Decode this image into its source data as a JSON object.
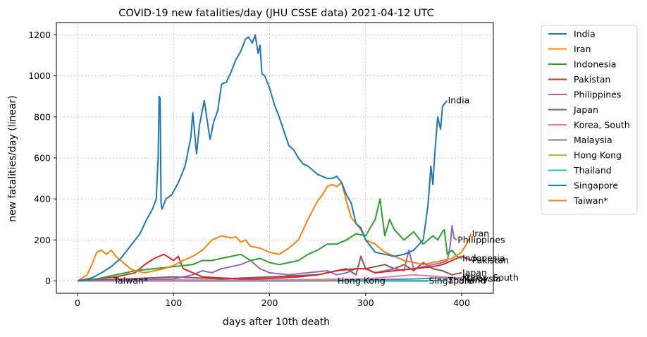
{
  "chart_data": {
    "type": "line",
    "title": "COVID-19 new fatalities/day (JHU CSSE data) 2021-04-12 UTC",
    "xlabel": "days after 10th death",
    "ylabel": "new fatalities/day (linear)",
    "xlim": [
      -22,
      433
    ],
    "ylim": [
      -60,
      1260
    ],
    "xticks": [
      0,
      100,
      200,
      300,
      400
    ],
    "yticks": [
      0,
      200,
      400,
      600,
      800,
      1000,
      1200
    ],
    "grid": true,
    "legend_position": "right",
    "series": [
      {
        "name": "India",
        "color": "#1f77b4",
        "end_label": "India",
        "x": [
          0,
          15,
          25,
          35,
          45,
          55,
          65,
          72,
          78,
          82,
          84,
          85,
          86,
          87,
          88,
          92,
          98,
          105,
          112,
          118,
          120,
          124,
          127,
          132,
          138,
          142,
          146,
          150,
          155,
          160,
          165,
          170,
          175,
          178,
          182,
          185,
          188,
          190,
          192,
          195,
          200,
          205,
          210,
          215,
          220,
          225,
          230,
          235,
          240,
          245,
          250,
          255,
          260,
          265,
          270,
          275,
          280,
          285,
          290,
          295,
          300,
          305,
          310,
          320,
          330,
          340,
          350,
          360,
          365,
          368,
          370,
          372,
          375,
          378,
          380,
          383,
          385
        ],
        "y": [
          0,
          15,
          40,
          70,
          110,
          170,
          230,
          300,
          350,
          400,
          600,
          900,
          890,
          380,
          350,
          400,
          420,
          480,
          560,
          700,
          820,
          620,
          760,
          880,
          690,
          780,
          830,
          960,
          970,
          1020,
          1080,
          1120,
          1180,
          1190,
          1160,
          1200,
          1110,
          1150,
          1010,
          1000,
          940,
          860,
          800,
          730,
          660,
          640,
          600,
          570,
          560,
          540,
          520,
          510,
          500,
          500,
          510,
          480,
          420,
          380,
          280,
          260,
          200,
          170,
          140,
          130,
          120,
          130,
          150,
          200,
          370,
          560,
          470,
          620,
          800,
          740,
          850,
          870,
          880
        ]
      },
      {
        "name": "Iran",
        "color": "#ff7f0e",
        "end_label": "Iran",
        "x": [
          0,
          10,
          15,
          20,
          25,
          30,
          35,
          40,
          45,
          50,
          55,
          60,
          70,
          80,
          90,
          100,
          110,
          120,
          130,
          140,
          150,
          160,
          165,
          170,
          175,
          180,
          190,
          200,
          210,
          220,
          230,
          240,
          250,
          255,
          260,
          265,
          270,
          275,
          280,
          285,
          290,
          295,
          300,
          310,
          320,
          330,
          340,
          350,
          360,
          370,
          380,
          390,
          400,
          405,
          410
        ],
        "y": [
          0,
          30,
          80,
          140,
          150,
          130,
          150,
          120,
          100,
          80,
          60,
          50,
          40,
          50,
          60,
          75,
          100,
          120,
          150,
          200,
          220,
          210,
          215,
          190,
          200,
          170,
          160,
          140,
          130,
          160,
          200,
          300,
          390,
          420,
          460,
          470,
          460,
          480,
          390,
          310,
          280,
          250,
          200,
          180,
          140,
          120,
          100,
          90,
          80,
          90,
          100,
          110,
          140,
          180,
          230
        ]
      },
      {
        "name": "Indonesia",
        "color": "#2ca02c",
        "end_label": "Indonesia",
        "x": [
          0,
          20,
          40,
          60,
          80,
          100,
          120,
          130,
          140,
          150,
          160,
          170,
          180,
          190,
          200,
          210,
          220,
          230,
          240,
          250,
          260,
          270,
          280,
          290,
          300,
          305,
          310,
          315,
          320,
          325,
          330,
          340,
          350,
          360,
          370,
          375,
          380,
          382,
          385,
          390,
          395,
          400
        ],
        "y": [
          0,
          10,
          30,
          50,
          60,
          70,
          80,
          100,
          100,
          110,
          120,
          130,
          100,
          110,
          90,
          80,
          90,
          100,
          130,
          150,
          180,
          180,
          200,
          230,
          220,
          260,
          300,
          400,
          220,
          300,
          250,
          200,
          240,
          180,
          220,
          200,
          240,
          250,
          130,
          150,
          120,
          110
        ]
      },
      {
        "name": "Pakistan",
        "color": "#d62728",
        "end_label": "Pakistan",
        "x": [
          0,
          20,
          40,
          60,
          70,
          80,
          90,
          100,
          105,
          110,
          120,
          130,
          150,
          170,
          190,
          210,
          230,
          250,
          270,
          290,
          300,
          310,
          330,
          350,
          370,
          380,
          385,
          390,
          395,
          400,
          410
        ],
        "y": [
          0,
          10,
          20,
          40,
          80,
          110,
          130,
          100,
          120,
          60,
          40,
          20,
          15,
          10,
          10,
          15,
          20,
          30,
          50,
          60,
          60,
          40,
          50,
          60,
          70,
          80,
          90,
          100,
          110,
          120,
          100
        ]
      },
      {
        "name": "Philippines",
        "color": "#9467bd",
        "end_label": "Philippines",
        "x": [
          0,
          50,
          100,
          120,
          130,
          140,
          150,
          160,
          170,
          180,
          190,
          200,
          220,
          240,
          260,
          270,
          280,
          290,
          300,
          310,
          320,
          330,
          340,
          345,
          350,
          360,
          370,
          380,
          385,
          388,
          390,
          392,
          395
        ],
        "y": [
          0,
          5,
          10,
          30,
          50,
          40,
          60,
          70,
          80,
          100,
          60,
          40,
          30,
          40,
          50,
          30,
          40,
          60,
          60,
          40,
          50,
          60,
          50,
          150,
          60,
          70,
          80,
          90,
          100,
          170,
          270,
          210,
          200
        ]
      },
      {
        "name": "Japan",
        "color": "#8c564b",
        "end_label": "Japan",
        "x": [
          0,
          50,
          100,
          150,
          200,
          250,
          280,
          290,
          295,
          300,
          310,
          320,
          330,
          340,
          350,
          360,
          370,
          380,
          390,
          400
        ],
        "y": [
          0,
          10,
          20,
          10,
          20,
          30,
          60,
          30,
          120,
          60,
          70,
          80,
          60,
          80,
          50,
          90,
          60,
          50,
          30,
          40
        ]
      },
      {
        "name": "Korea, South",
        "color": "#e377c2",
        "end_label": "Korea, South",
        "x": [
          0,
          100,
          200,
          300,
          350,
          380,
          400
        ],
        "y": [
          0,
          5,
          5,
          10,
          30,
          20,
          15
        ]
      },
      {
        "name": "Malaysia",
        "color": "#7f7f7f",
        "end_label": "Malaysia",
        "x": [
          0,
          200,
          300,
          350,
          380,
          400
        ],
        "y": [
          0,
          2,
          5,
          10,
          15,
          10
        ]
      },
      {
        "name": "Hong Kong",
        "color": "#bcbd22",
        "end_label": "Hong Kong",
        "x": [
          0,
          100,
          200,
          270
        ],
        "y": [
          0,
          2,
          3,
          1
        ]
      },
      {
        "name": "Thailand",
        "color": "#17becf",
        "end_label": "Thailand",
        "x": [
          0,
          100,
          200,
          300,
          385
        ],
        "y": [
          0,
          1,
          1,
          1,
          2
        ]
      },
      {
        "name": "Singapore",
        "color": "#1f77b4",
        "end_label": "Singapore",
        "x": [
          0,
          100,
          200,
          300,
          365
        ],
        "y": [
          0,
          0,
          0,
          0,
          0
        ]
      },
      {
        "name": "Taiwan*",
        "color": "#ff7f0e",
        "end_label": "Taiwan*",
        "x": [
          0,
          20,
          37
        ],
        "y": [
          0,
          0,
          0
        ]
      }
    ]
  }
}
